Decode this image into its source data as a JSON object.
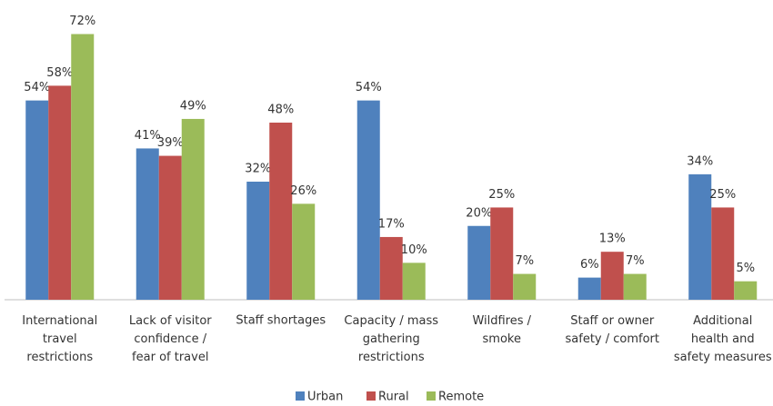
{
  "chart_data": {
    "type": "bar",
    "categories": [
      "International\ntravel\nrestrictions",
      "Lack of visitor\nconfidence /\nfear of travel",
      "Staff shortages",
      "Capacity / mass\ngathering\nrestrictions",
      "Wildfires /\nsmoke",
      "Staff or owner\nsafety / comfort",
      "Additional\nhealth and\nsafety measures"
    ],
    "series": [
      {
        "name": "Urban",
        "color": "#4f81bd",
        "values": [
          54,
          41,
          32,
          54,
          20,
          6,
          34
        ],
        "value_labels": [
          "54%",
          "41%",
          "32%",
          "54%",
          "20%",
          "6%",
          "34%"
        ]
      },
      {
        "name": "Rural",
        "color": "#c0504d",
        "values": [
          58,
          39,
          48,
          17,
          25,
          13,
          25
        ],
        "value_labels": [
          "58%",
          "39%",
          "48%",
          "17%",
          "25%",
          "13%",
          "25%"
        ]
      },
      {
        "name": "Remote",
        "color": "#9bbb59",
        "values": [
          72,
          49,
          26,
          10,
          7,
          7,
          5
        ],
        "value_labels": [
          "72%",
          "49%",
          "26%",
          "10%",
          "7%",
          "7%",
          "5%"
        ]
      }
    ],
    "ylim": [
      0,
      80
    ],
    "legend": "bottom"
  }
}
